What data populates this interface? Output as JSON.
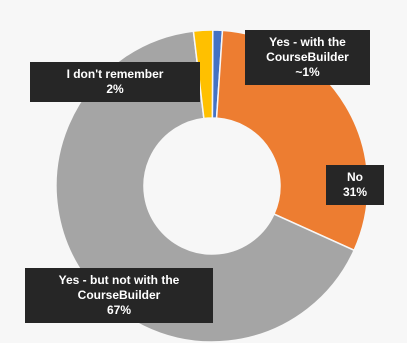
{
  "chart_data": {
    "type": "donut",
    "categories": [
      "Yes - with the CourseBuilder",
      "No",
      "Yes - but not with the CourseBuilder",
      "I don't remember"
    ],
    "values": [
      1,
      31,
      67,
      2
    ],
    "value_labels": [
      "~1%",
      "31%",
      "67%",
      "2%"
    ],
    "colors": [
      "#4472c4",
      "#ed7d31",
      "#a5a5a5",
      "#ffc000"
    ]
  }
}
